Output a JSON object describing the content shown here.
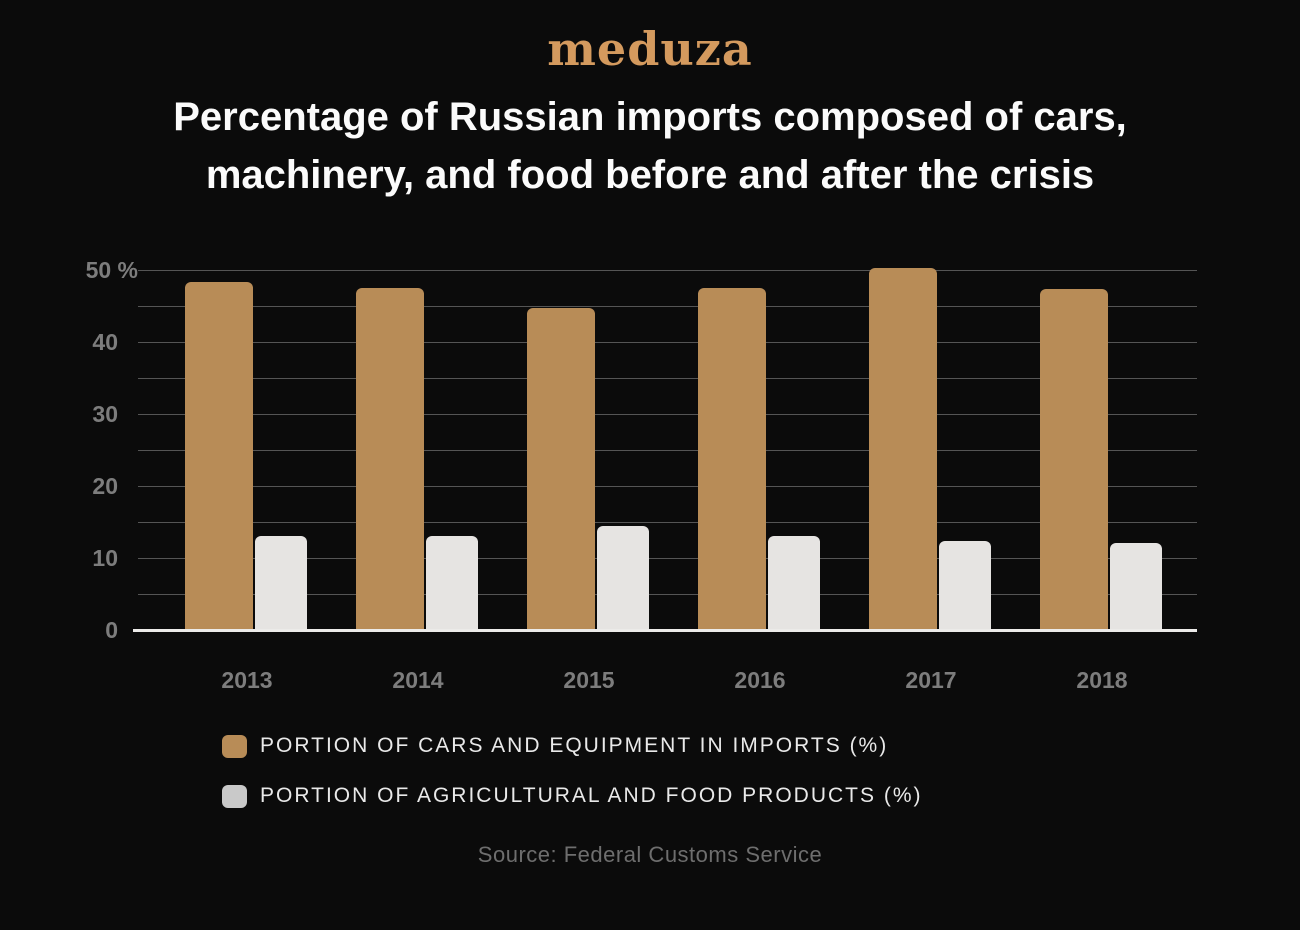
{
  "page": {
    "background": "#0b0b0b"
  },
  "logo": {
    "text": "meduza",
    "color": "#d49a5e"
  },
  "title": {
    "line1": "Percentage of Russian imports composed of cars,",
    "line2": "machinery, and food before and after the crisis"
  },
  "chart_data": {
    "type": "bar",
    "title": "Percentage of Russian imports composed of cars, machinery, and food before and after the crisis",
    "categories": [
      "2013",
      "2014",
      "2015",
      "2016",
      "2017",
      "2018"
    ],
    "series": [
      {
        "name": "PORTION OF CARS AND EQUIPMENT IN IMPORTS (%)",
        "color": "#b88c57",
        "values": [
          48.3,
          47.5,
          44.7,
          47.5,
          50.3,
          47.4
        ]
      },
      {
        "name": "PORTION OF AGRICULTURAL AND FOOD PRODUCTS (%)",
        "color": "#e6e4e2",
        "values": [
          13.1,
          13.0,
          14.4,
          13.0,
          12.3,
          12.1
        ]
      }
    ],
    "xlabel": "",
    "ylabel": "",
    "ylim": [
      0,
      50
    ],
    "yticks": [
      0,
      10,
      20,
      30,
      40,
      50
    ],
    "ytick_suffix_at_top": " %",
    "grid": true,
    "grid_interval": 5,
    "legend_position": "bottom-left",
    "axis_label_color": "#7d7d7d",
    "gridline_color": "#555555",
    "baseline_color": "#ecebe9"
  },
  "legend": {
    "items": [
      {
        "label": "PORTION OF CARS AND EQUIPMENT IN IMPORTS (%)",
        "swatch_color": "#b88c57"
      },
      {
        "label": "PORTION OF AGRICULTURAL AND FOOD PRODUCTS (%)",
        "swatch_color": "#c9c9c9"
      }
    ]
  },
  "source": {
    "text": "Source: Federal Customs Service"
  }
}
